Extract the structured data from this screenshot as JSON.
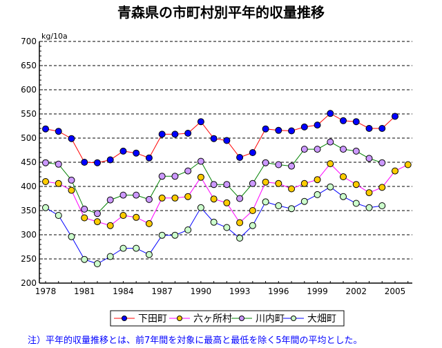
{
  "chart_data": {
    "type": "line",
    "title": "青森県の市町村別平年的収量推移",
    "ylabel": "kg/10a",
    "xlabel": "",
    "ylim": [
      200,
      700
    ],
    "yticks": [
      200,
      250,
      300,
      350,
      400,
      450,
      500,
      550,
      600,
      650,
      700
    ],
    "xlim": [
      1978,
      2006
    ],
    "xticks": [
      1978,
      1981,
      1984,
      1987,
      1990,
      1993,
      1996,
      1999,
      2002,
      2005
    ],
    "grid": "horizontal dashed",
    "legend_placement": "bottom",
    "x": [
      1978,
      1979,
      1980,
      1981,
      1982,
      1983,
      1984,
      1985,
      1986,
      1987,
      1988,
      1989,
      1990,
      1991,
      1992,
      1993,
      1994,
      1995,
      1996,
      1997,
      1998,
      1999,
      2000,
      2001,
      2002,
      2003,
      2004,
      2005,
      2006
    ],
    "series": [
      {
        "name": "下田町",
        "line_color": "#ff0000",
        "marker_color": "#0000ff",
        "values": [
          519,
          514,
          499,
          450,
          449,
          455,
          473,
          469,
          459,
          508,
          508,
          510,
          534,
          499,
          495,
          460,
          470,
          519,
          516,
          515,
          523,
          527,
          551,
          536,
          534,
          520,
          520,
          545,
          null
        ]
      },
      {
        "name": "六ヶ所村",
        "line_color": "#ff00ff",
        "marker_color": "#ffcc00",
        "values": [
          410,
          406,
          392,
          335,
          327,
          319,
          340,
          336,
          323,
          376,
          376,
          379,
          419,
          374,
          366,
          325,
          350,
          409,
          406,
          395,
          406,
          414,
          447,
          420,
          404,
          387,
          398,
          432,
          445
        ]
      },
      {
        "name": "川内町",
        "line_color": "#008000",
        "marker_color": "#cc99ff",
        "values": [
          449,
          446,
          413,
          353,
          344,
          372,
          382,
          382,
          373,
          421,
          421,
          432,
          452,
          404,
          404,
          375,
          406,
          449,
          445,
          442,
          477,
          477,
          492,
          477,
          473,
          458,
          449,
          null,
          null
        ]
      },
      {
        "name": "大畑町",
        "line_color": "#0000ff",
        "marker_color": "#ccffcc",
        "values": [
          356,
          340,
          296,
          249,
          240,
          255,
          272,
          272,
          259,
          299,
          299,
          310,
          356,
          326,
          315,
          293,
          319,
          368,
          360,
          354,
          369,
          383,
          399,
          379,
          365,
          356,
          360,
          null,
          null
        ]
      }
    ]
  },
  "footnote": "注）平年的収量推移とは、前7年間を対象に最高と最低を除く5年間の平均とした。"
}
